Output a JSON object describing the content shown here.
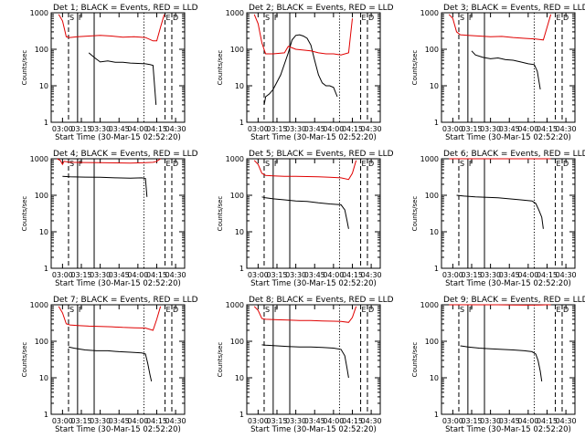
{
  "colors": {
    "events": "#000000",
    "lld": "#e00000",
    "axes": "#000000",
    "background": "#ffffff"
  },
  "chart_data": [
    {
      "title": "Det 1; BLACK = Events, RED = LLD",
      "type": "line",
      "xlabel": "Start Time (30-Mar-15 02:52:20)",
      "ylabel": "Counts/sec",
      "yscale": "log",
      "ylim": [
        1,
        1000
      ],
      "xticks": [
        "03:00",
        "03:15",
        "03:30",
        "03:45",
        "04:00",
        "04:15",
        "04:30"
      ],
      "yticks": [
        "1",
        "10",
        "100",
        "1000"
      ],
      "markers": [
        "S",
        "F",
        "E",
        "D"
      ],
      "series": [
        {
          "role": "events",
          "color": "#000000",
          "x": [
            3.35,
            3.42,
            3.5,
            3.6,
            3.7,
            3.8,
            3.9,
            4.0,
            4.1,
            4.16,
            4.2,
            4.24
          ],
          "y": [
            80,
            60,
            45,
            48,
            44,
            44,
            42,
            41,
            40,
            38,
            36,
            3
          ]
        },
        {
          "role": "lld",
          "color": "#e00000",
          "x": [
            2.95,
            3.0,
            3.05,
            3.1,
            3.2,
            3.35,
            3.5,
            3.65,
            3.8,
            3.95,
            4.1,
            4.2,
            4.25,
            4.3,
            4.35
          ],
          "y": [
            900,
            600,
            220,
            210,
            220,
            230,
            240,
            230,
            215,
            220,
            210,
            170,
            170,
            400,
            900
          ]
        }
      ]
    },
    {
      "title": "Det 2; BLACK = Events, RED = LLD",
      "type": "line",
      "xlabel": "Start Time (30-Mar-15 02:52:20)",
      "ylabel": "Counts/sec",
      "yscale": "log",
      "ylim": [
        1,
        1000
      ],
      "xticks": [
        "03:00",
        "03:15",
        "03:30",
        "03:45",
        "04:00",
        "04:15",
        "04:30"
      ],
      "yticks": [
        "1",
        "10",
        "100",
        "1000"
      ],
      "markers": [
        "S",
        "F",
        "E",
        "D"
      ],
      "series": [
        {
          "role": "events",
          "color": "#000000",
          "x": [
            3.08,
            3.1,
            3.15,
            3.2,
            3.3,
            3.4,
            3.45,
            3.5,
            3.55,
            3.6,
            3.65,
            3.7,
            3.75,
            3.8,
            3.85,
            3.9,
            3.95,
            4.0,
            4.05
          ],
          "y": [
            3,
            5,
            6,
            8,
            20,
            80,
            180,
            240,
            250,
            230,
            200,
            130,
            50,
            20,
            12,
            10,
            10,
            9,
            5
          ]
        },
        {
          "role": "lld",
          "color": "#e00000",
          "x": [
            2.95,
            3.0,
            3.05,
            3.1,
            3.2,
            3.35,
            3.4,
            3.5,
            3.6,
            3.7,
            3.8,
            3.9,
            4.0,
            4.1,
            4.2,
            4.25
          ],
          "y": [
            900,
            500,
            150,
            75,
            75,
            80,
            120,
            100,
            95,
            90,
            80,
            75,
            75,
            70,
            80,
            700
          ]
        }
      ]
    },
    {
      "title": "Det 3; BLACK = Events, RED = LLD",
      "type": "line",
      "xlabel": "Start Time (30-Mar-15 02:52:20)",
      "ylabel": "Counts/sec",
      "yscale": "log",
      "ylim": [
        1,
        1000
      ],
      "xticks": [
        "03:00",
        "03:15",
        "03:30",
        "03:45",
        "04:00",
        "04:15",
        "04:30"
      ],
      "yticks": [
        "1",
        "10",
        "100",
        "1000"
      ],
      "markers": [
        "S",
        "F",
        "E",
        "D"
      ],
      "series": [
        {
          "role": "events",
          "color": "#000000",
          "x": [
            3.25,
            3.3,
            3.4,
            3.5,
            3.6,
            3.7,
            3.8,
            3.9,
            4.0,
            4.08,
            4.12,
            4.16
          ],
          "y": [
            90,
            70,
            60,
            55,
            58,
            52,
            50,
            45,
            40,
            38,
            25,
            8
          ]
        },
        {
          "role": "lld",
          "color": "#e00000",
          "x": [
            2.95,
            3.0,
            3.05,
            3.1,
            3.2,
            3.35,
            3.5,
            3.65,
            3.8,
            3.95,
            4.1,
            4.2,
            4.25,
            4.3
          ],
          "y": [
            900,
            700,
            300,
            250,
            240,
            230,
            220,
            225,
            210,
            200,
            190,
            180,
            400,
            900
          ]
        }
      ]
    },
    {
      "title": "Det 4; BLACK = Events, RED = LLD",
      "type": "line",
      "xlabel": "Start Time (30-Mar-15 02:52:20)",
      "ylabel": "Counts/sec",
      "yscale": "log",
      "ylim": [
        1,
        1000
      ],
      "xticks": [
        "03:00",
        "03:15",
        "03:30",
        "03:45",
        "04:00",
        "04:15",
        "04:30"
      ],
      "yticks": [
        "1",
        "10",
        "100",
        "1000"
      ],
      "markers": [
        "S",
        "F",
        "E",
        "D"
      ],
      "series": [
        {
          "role": "events",
          "color": "#000000",
          "x": [
            3.0,
            3.1,
            3.3,
            3.5,
            3.7,
            3.9,
            4.05,
            4.1,
            4.12
          ],
          "y": [
            330,
            320,
            315,
            310,
            300,
            295,
            300,
            290,
            90
          ]
        },
        {
          "role": "lld",
          "color": "#e00000",
          "x": [
            2.93,
            2.97,
            3.0,
            3.02,
            3.1,
            3.3,
            3.5,
            3.7,
            3.9,
            4.1,
            4.2,
            4.25,
            4.3
          ],
          "y": [
            1000,
            900,
            700,
            850,
            800,
            790,
            780,
            770,
            760,
            780,
            800,
            850,
            1000
          ]
        }
      ]
    },
    {
      "title": "Det 5; BLACK = Events, RED = LLD",
      "type": "line",
      "xlabel": "Start Time (30-Mar-15 02:52:20)",
      "ylabel": "Counts/sec",
      "yscale": "log",
      "ylim": [
        1,
        1000
      ],
      "xticks": [
        "03:00",
        "03:15",
        "03:30",
        "03:45",
        "04:00",
        "04:15",
        "04:30"
      ],
      "yticks": [
        "1",
        "10",
        "100",
        "1000"
      ],
      "markers": [
        "S",
        "F",
        "E",
        "D"
      ],
      "series": [
        {
          "role": "events",
          "color": "#000000",
          "x": [
            3.05,
            3.1,
            3.2,
            3.35,
            3.5,
            3.65,
            3.8,
            3.95,
            4.1,
            4.15,
            4.18,
            4.2
          ],
          "y": [
            90,
            85,
            80,
            75,
            70,
            68,
            62,
            58,
            55,
            40,
            20,
            12
          ]
        },
        {
          "role": "lld",
          "color": "#e00000",
          "x": [
            2.95,
            3.0,
            3.05,
            3.1,
            3.2,
            3.35,
            3.5,
            3.65,
            3.8,
            3.95,
            4.1,
            4.2,
            4.25,
            4.3
          ],
          "y": [
            900,
            700,
            400,
            350,
            340,
            330,
            330,
            325,
            320,
            310,
            300,
            270,
            400,
            900
          ]
        }
      ]
    },
    {
      "title": "Det 6; BLACK = Events, RED = LLD",
      "type": "line",
      "xlabel": "Start Time (30-Mar-15 02:52:20)",
      "ylabel": "Counts/sec",
      "yscale": "log",
      "ylim": [
        1,
        1000
      ],
      "xticks": [
        "03:00",
        "03:15",
        "03:30",
        "03:45",
        "04:00",
        "04:15",
        "04:30"
      ],
      "yticks": [
        "1",
        "10",
        "100",
        "1000"
      ],
      "markers": [
        "S",
        "F",
        "E",
        "D"
      ],
      "series": [
        {
          "role": "events",
          "color": "#000000",
          "x": [
            3.05,
            3.15,
            3.3,
            3.45,
            3.6,
            3.75,
            3.9,
            4.05,
            4.1,
            4.14,
            4.18,
            4.2
          ],
          "y": [
            100,
            95,
            90,
            88,
            85,
            80,
            75,
            70,
            60,
            40,
            25,
            12
          ]
        },
        {
          "role": "lld",
          "color": "#e00000",
          "x": [
            2.95,
            3.0,
            3.05,
            3.3,
            3.6,
            3.9,
            4.1,
            4.2,
            4.3
          ],
          "y": [
            1000,
            1000,
            1000,
            1000,
            1000,
            1000,
            1000,
            1000,
            1000
          ]
        }
      ]
    },
    {
      "title": "Det 7; BLACK = Events, RED = LLD",
      "type": "line",
      "xlabel": "Start Time (30-Mar-15 02:52:20)",
      "ylabel": "Counts/sec",
      "yscale": "log",
      "ylim": [
        1,
        1000
      ],
      "xticks": [
        "03:00",
        "03:15",
        "03:30",
        "03:45",
        "04:00",
        "04:15",
        "04:30"
      ],
      "yticks": [
        "1",
        "10",
        "100",
        "1000"
      ],
      "markers": [
        "S",
        "F",
        "E",
        "D"
      ],
      "series": [
        {
          "role": "events",
          "color": "#000000",
          "x": [
            3.08,
            3.15,
            3.3,
            3.45,
            3.6,
            3.75,
            3.9,
            4.05,
            4.1,
            4.13,
            4.16,
            4.18
          ],
          "y": [
            70,
            65,
            58,
            55,
            55,
            52,
            50,
            48,
            45,
            25,
            12,
            8
          ]
        },
        {
          "role": "lld",
          "color": "#e00000",
          "x": [
            2.95,
            3.0,
            3.05,
            3.1,
            3.2,
            3.35,
            3.5,
            3.65,
            3.8,
            3.95,
            4.1,
            4.2,
            4.25,
            4.3
          ],
          "y": [
            900,
            600,
            300,
            280,
            270,
            260,
            255,
            250,
            240,
            235,
            230,
            200,
            400,
            900
          ]
        }
      ]
    },
    {
      "title": "Det 8; BLACK = Events, RED = LLD",
      "type": "line",
      "xlabel": "Start Time (30-Mar-15 02:52:20)",
      "ylabel": "Counts/sec",
      "yscale": "log",
      "ylim": [
        1,
        1000
      ],
      "xticks": [
        "03:00",
        "03:15",
        "03:30",
        "03:45",
        "04:00",
        "04:15",
        "04:30"
      ],
      "yticks": [
        "1",
        "10",
        "100",
        "1000"
      ],
      "markers": [
        "S",
        "F",
        "E",
        "D"
      ],
      "series": [
        {
          "role": "events",
          "color": "#000000",
          "x": [
            3.05,
            3.1,
            3.25,
            3.4,
            3.55,
            3.7,
            3.85,
            4.0,
            4.1,
            4.15,
            4.18,
            4.2
          ],
          "y": [
            80,
            78,
            75,
            72,
            70,
            70,
            68,
            65,
            60,
            40,
            18,
            10
          ]
        },
        {
          "role": "lld",
          "color": "#e00000",
          "x": [
            2.95,
            3.0,
            3.05,
            3.1,
            3.25,
            3.4,
            3.55,
            3.7,
            3.85,
            4.0,
            4.1,
            4.2,
            4.25,
            4.3
          ],
          "y": [
            900,
            700,
            420,
            400,
            390,
            380,
            370,
            370,
            360,
            355,
            350,
            330,
            450,
            900
          ]
        }
      ]
    },
    {
      "title": "Det 9; BLACK = Events, RED = LLD",
      "type": "line",
      "xlabel": "Start Time (30-Mar-15 02:52:20)",
      "ylabel": "Counts/sec",
      "yscale": "log",
      "ylim": [
        1,
        1000
      ],
      "xticks": [
        "03:00",
        "03:15",
        "03:30",
        "03:45",
        "04:00",
        "04:15",
        "04:30"
      ],
      "yticks": [
        "1",
        "10",
        "100",
        "1000"
      ],
      "markers": [
        "S",
        "F",
        "E",
        "D"
      ],
      "series": [
        {
          "role": "events",
          "color": "#000000",
          "x": [
            3.1,
            3.2,
            3.35,
            3.5,
            3.65,
            3.8,
            3.95,
            4.05,
            4.1,
            4.13,
            4.16,
            4.18
          ],
          "y": [
            75,
            70,
            65,
            62,
            60,
            58,
            55,
            52,
            45,
            30,
            15,
            8
          ]
        },
        {
          "role": "lld",
          "color": "#e00000",
          "x": [
            2.95,
            3.05,
            3.2,
            3.4,
            3.6,
            3.8,
            4.0,
            4.15,
            4.25,
            4.3
          ],
          "y": [
            1000,
            1000,
            1000,
            1000,
            1000,
            990,
            980,
            990,
            1000,
            1000
          ]
        }
      ]
    }
  ]
}
